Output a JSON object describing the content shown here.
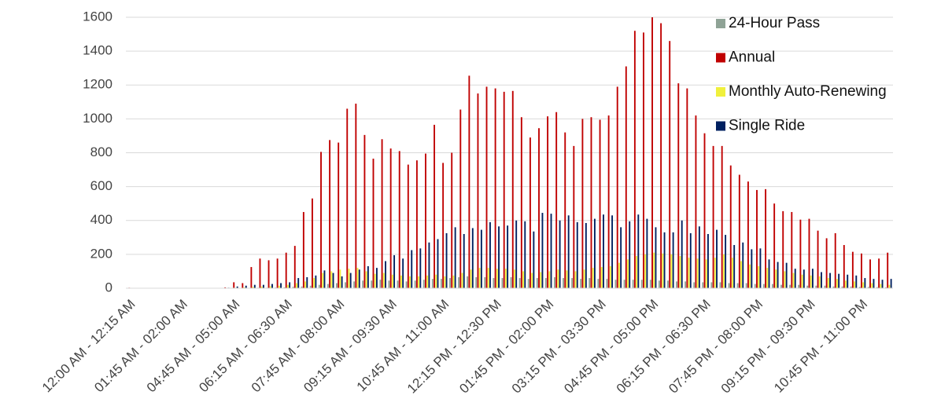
{
  "chart_data": {
    "type": "bar",
    "categories": [
      "12:00 AM - 12:15 AM",
      null,
      null,
      null,
      null,
      null,
      "01:45 AM - 02:00 AM",
      null,
      null,
      null,
      null,
      null,
      "04:45 AM - 05:00 AM",
      null,
      null,
      null,
      null,
      null,
      "06:15 AM - 06:30 AM",
      null,
      null,
      null,
      null,
      null,
      "07:45 AM - 08:00 AM",
      null,
      null,
      null,
      null,
      null,
      "09:15 AM - 09:30 AM",
      null,
      null,
      null,
      null,
      null,
      "10:45 AM - 11:00 AM",
      null,
      null,
      null,
      null,
      null,
      "12:15 PM - 12:30 PM",
      null,
      null,
      null,
      null,
      null,
      "01:45 PM - 02:00 PM",
      null,
      null,
      null,
      null,
      null,
      "03:15 PM - 03:30 PM",
      null,
      null,
      null,
      null,
      null,
      "04:45 PM - 05:00 PM",
      null,
      null,
      null,
      null,
      null,
      "06:15 PM - 06:30 PM",
      null,
      null,
      null,
      null,
      null,
      "07:45 PM - 08:00 PM",
      null,
      null,
      null,
      null,
      null,
      "09:15 PM - 09:30 PM",
      null,
      null,
      null,
      null,
      null,
      "10:45 PM - 11:00 PM",
      null,
      null,
      null
    ],
    "series": [
      {
        "name": "24-Hour Pass",
        "color": "#8fa396",
        "values": [
          0,
          0,
          0,
          0,
          0,
          0,
          0,
          0,
          0,
          0,
          0,
          0,
          1,
          1,
          2,
          3,
          3,
          4,
          5,
          8,
          10,
          15,
          20,
          25,
          30,
          35,
          40,
          45,
          45,
          50,
          45,
          45,
          40,
          45,
          50,
          55,
          55,
          60,
          65,
          70,
          65,
          65,
          60,
          60,
          65,
          60,
          55,
          60,
          60,
          65,
          60,
          60,
          55,
          60,
          55,
          55,
          50,
          50,
          50,
          50,
          50,
          45,
          45,
          40,
          40,
          35,
          35,
          35,
          35,
          30,
          30,
          30,
          25,
          25,
          25,
          20,
          20,
          20,
          15,
          15,
          15,
          10,
          10,
          10,
          8,
          8,
          6,
          5
        ]
      },
      {
        "name": "Annual",
        "color": "#c00000",
        "values": [
          3,
          2,
          1,
          1,
          1,
          1,
          0,
          0,
          0,
          0,
          2,
          5,
          35,
          30,
          125,
          175,
          165,
          175,
          210,
          250,
          450,
          530,
          805,
          875,
          860,
          1060,
          1090,
          905,
          765,
          880,
          825,
          810,
          730,
          755,
          795,
          965,
          740,
          800,
          1055,
          1255,
          1150,
          1190,
          1180,
          1160,
          1165,
          1010,
          890,
          945,
          1015,
          1040,
          920,
          840,
          1000,
          1010,
          995,
          1020,
          1190,
          1310,
          1520,
          1510,
          1600,
          1565,
          1460,
          1210,
          1180,
          1020,
          915,
          840,
          840,
          725,
          670,
          630,
          580,
          585,
          500,
          455,
          450,
          405,
          410,
          340,
          295,
          325,
          255,
          215,
          205,
          170,
          175,
          210
        ]
      },
      {
        "name": "Monthly Auto-Renewing",
        "color": "#f0f03c",
        "values": [
          0,
          0,
          0,
          0,
          0,
          0,
          0,
          0,
          0,
          0,
          0,
          1,
          3,
          5,
          8,
          10,
          12,
          15,
          20,
          30,
          40,
          60,
          90,
          100,
          110,
          115,
          120,
          100,
          85,
          90,
          80,
          75,
          70,
          70,
          75,
          80,
          70,
          75,
          90,
          110,
          120,
          120,
          115,
          115,
          110,
          100,
          90,
          95,
          100,
          110,
          105,
          100,
          110,
          120,
          125,
          130,
          150,
          170,
          190,
          200,
          210,
          205,
          200,
          190,
          180,
          175,
          170,
          180,
          200,
          180,
          160,
          140,
          130,
          120,
          110,
          100,
          90,
          80,
          75,
          70,
          60,
          55,
          45,
          40,
          35,
          30,
          25,
          20
        ]
      },
      {
        "name": "Single Ride",
        "color": "#002060",
        "values": [
          0,
          0,
          0,
          0,
          0,
          0,
          0,
          0,
          0,
          0,
          1,
          3,
          10,
          15,
          20,
          20,
          25,
          30,
          35,
          60,
          65,
          75,
          105,
          90,
          70,
          90,
          110,
          130,
          120,
          160,
          195,
          175,
          225,
          235,
          270,
          290,
          325,
          360,
          320,
          355,
          345,
          390,
          365,
          370,
          400,
          395,
          335,
          445,
          440,
          400,
          430,
          390,
          385,
          410,
          435,
          430,
          360,
          395,
          435,
          410,
          360,
          330,
          330,
          400,
          325,
          365,
          320,
          345,
          315,
          255,
          270,
          230,
          235,
          170,
          155,
          150,
          115,
          110,
          115,
          95,
          90,
          85,
          80,
          75,
          60,
          55,
          50,
          55
        ]
      }
    ],
    "ylim": [
      0,
      1600
    ],
    "yticks": [
      0,
      200,
      400,
      600,
      800,
      1000,
      1200,
      1400,
      1600
    ],
    "grid": true,
    "legend": "top-right"
  }
}
